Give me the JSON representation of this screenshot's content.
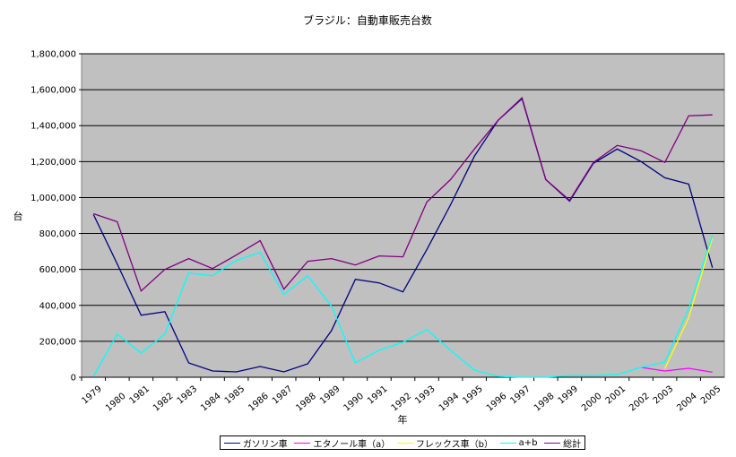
{
  "chart_data": {
    "type": "line",
    "title": "ブラジル：自動車販売台数",
    "xlabel": "年",
    "ylabel": "台",
    "ylim": [
      0,
      1800000
    ],
    "yticks": [
      "0",
      "200,000",
      "400,000",
      "600,000",
      "800,000",
      "1,000,000",
      "1,200,000",
      "1,400,000",
      "1,600,000",
      "1,800,000"
    ],
    "categories": [
      "1979",
      "1980",
      "1981",
      "1982",
      "1983",
      "1984",
      "1985",
      "1986",
      "1987",
      "1988",
      "1989",
      "1990",
      "1991",
      "1992",
      "1993",
      "1994",
      "1995",
      "1996",
      "1997",
      "1998",
      "1999",
      "2000",
      "2001",
      "2002",
      "2003",
      "2004",
      "2005"
    ],
    "grid": true,
    "legend_position": "bottom",
    "background_color": "#c0c0c0",
    "series": [
      {
        "name": "ガソリン車",
        "color": "#000080",
        "values": [
          905000,
          630000,
          345000,
          365000,
          80000,
          35000,
          30000,
          60000,
          30000,
          75000,
          260000,
          545000,
          525000,
          475000,
          710000,
          960000,
          1230000,
          1430000,
          1550000,
          1100000,
          980000,
          1190000,
          1270000,
          1200000,
          1110000,
          1075000,
          610000
        ]
      },
      {
        "name": "エタノール車（a）",
        "color": "#ff00ff",
        "values": [
          null,
          null,
          null,
          null,
          null,
          null,
          null,
          null,
          null,
          null,
          null,
          null,
          null,
          null,
          null,
          null,
          null,
          null,
          null,
          null,
          null,
          null,
          null,
          55000,
          35000,
          50000,
          28000
        ]
      },
      {
        "name": "フレックス車（b）",
        "color": "#ffff00",
        "values": [
          null,
          null,
          null,
          null,
          null,
          null,
          null,
          null,
          null,
          null,
          null,
          null,
          null,
          null,
          null,
          null,
          null,
          null,
          null,
          null,
          null,
          null,
          null,
          null,
          48000,
          330000,
          775000
        ]
      },
      {
        "name": "a+b",
        "color": "#00ffff",
        "values": [
          5000,
          240000,
          135000,
          240000,
          580000,
          565000,
          650000,
          695000,
          460000,
          565000,
          395000,
          80000,
          150000,
          195000,
          265000,
          150000,
          40000,
          5000,
          0,
          0,
          10000,
          10000,
          15000,
          55000,
          85000,
          380000,
          790000
        ]
      },
      {
        "name": "総計",
        "color": "#800080",
        "values": [
          910000,
          865000,
          480000,
          600000,
          660000,
          605000,
          680000,
          760000,
          490000,
          645000,
          660000,
          625000,
          675000,
          670000,
          975000,
          1100000,
          1270000,
          1430000,
          1555000,
          1100000,
          985000,
          1195000,
          1290000,
          1260000,
          1195000,
          1455000,
          1460000
        ]
      }
    ]
  }
}
